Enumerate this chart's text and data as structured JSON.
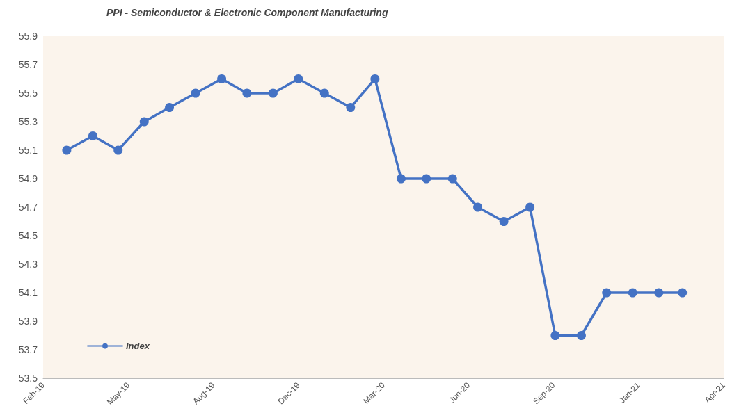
{
  "chart_data": {
    "type": "line",
    "title": "PPI - Semiconductor & Electronic Component Manufacturing",
    "x": [
      "2019-03",
      "2019-04",
      "2019-05",
      "2019-06",
      "2019-07",
      "2019-08",
      "2019-09",
      "2019-10",
      "2019-11",
      "2019-12",
      "2020-01",
      "2020-02",
      "2020-03",
      "2020-04",
      "2020-05",
      "2020-06",
      "2020-07",
      "2020-08",
      "2020-09",
      "2020-10",
      "2020-11",
      "2020-12",
      "2021-01",
      "2021-02",
      "2021-03"
    ],
    "series": [
      {
        "name": "Index",
        "color": "#4472c4",
        "values": [
          55.1,
          55.2,
          55.1,
          55.3,
          55.4,
          55.5,
          55.6,
          55.5,
          55.5,
          55.6,
          55.5,
          55.4,
          55.6,
          54.9,
          54.9,
          54.9,
          54.7,
          54.6,
          54.7,
          53.8,
          53.8,
          54.1,
          54.1,
          54.1,
          54.1
        ]
      }
    ],
    "xlim": [
      "2019-02-01",
      "2021-04-19"
    ],
    "xticks": [
      {
        "value": "2019-02-01",
        "label": "Feb-19"
      },
      {
        "value": "2019-05-13",
        "label": "May-19"
      },
      {
        "value": "2019-08-22",
        "label": "Aug-19"
      },
      {
        "value": "2019-12-01",
        "label": "Dec-19"
      },
      {
        "value": "2020-03-11",
        "label": "Mar-20"
      },
      {
        "value": "2020-06-20",
        "label": "Jun-20"
      },
      {
        "value": "2020-09-29",
        "label": "Sep-20"
      },
      {
        "value": "2021-01-08",
        "label": "Jan-21"
      },
      {
        "value": "2021-04-19",
        "label": "Apr-21"
      }
    ],
    "ylim": [
      53.5,
      55.9
    ],
    "yticks": [
      53.5,
      53.7,
      53.9,
      54.1,
      54.3,
      54.5,
      54.7,
      54.9,
      55.1,
      55.3,
      55.5,
      55.7,
      55.9
    ],
    "grid": false,
    "legend": "bottom left",
    "marker": "circle",
    "line_style": "solid"
  }
}
